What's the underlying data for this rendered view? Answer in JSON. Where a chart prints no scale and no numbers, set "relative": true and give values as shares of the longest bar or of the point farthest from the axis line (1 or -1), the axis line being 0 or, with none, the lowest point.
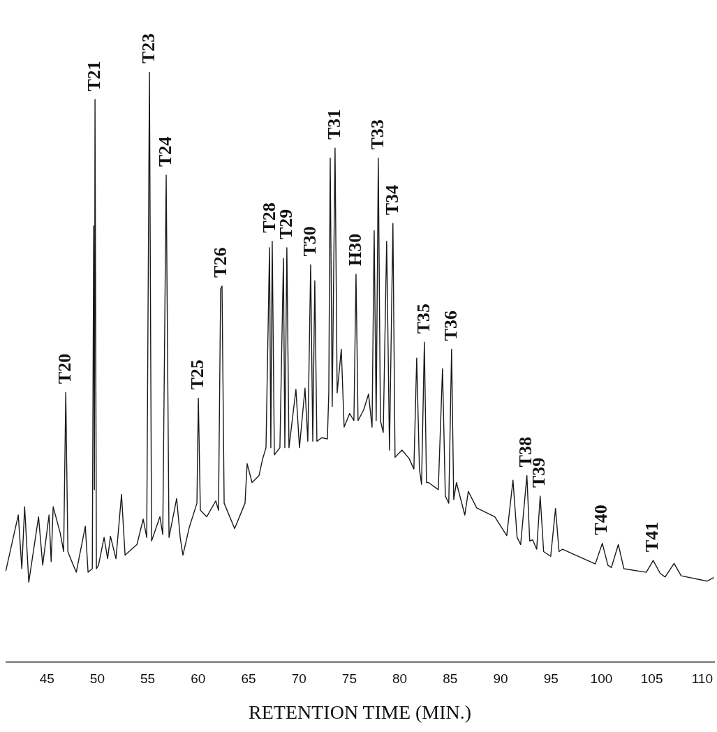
{
  "chart_data": {
    "type": "line",
    "xlabel": "RETENTION TIME (MIN.)",
    "relative": true,
    "marker": "none",
    "color": "#1a1a1a",
    "xlim": [
      40.9,
      111.2
    ],
    "xticks": [
      45,
      50,
      55,
      60,
      65,
      70,
      75,
      80,
      85,
      90,
      95,
      100,
      105,
      110
    ],
    "x": [
      40.92,
      42.16,
      42.51,
      42.79,
      43.2,
      44.17,
      44.58,
      45.21,
      45.42,
      45.62,
      46.31,
      46.66,
      46.87,
      47.08,
      47.35,
      47.91,
      48.81,
      49.08,
      49.5,
      49.64,
      49.71,
      49.77,
      49.91,
      50.12,
      50.67,
      51.02,
      51.3,
      51.85,
      52.4,
      52.75,
      53.93,
      54.55,
      54.9,
      55.17,
      55.38,
      56.21,
      56.49,
      56.83,
      57.11,
      57.87,
      58.22,
      58.49,
      59.12,
      59.88,
      60.02,
      60.22,
      60.85,
      61.75,
      62.02,
      62.23,
      62.37,
      62.58,
      63.62,
      64.65,
      64.86,
      65.35,
      66.04,
      66.38,
      66.73,
      67.08,
      67.21,
      67.35,
      67.56,
      68.11,
      68.46,
      68.6,
      68.8,
      69.01,
      69.7,
      70.05,
      70.6,
      70.88,
      71.16,
      71.37,
      71.57,
      71.78,
      72.27,
      72.82,
      72.96,
      73.1,
      73.3,
      73.58,
      73.79,
      74.2,
      74.48,
      75.03,
      75.45,
      75.66,
      75.86,
      76.42,
      76.9,
      77.25,
      77.46,
      77.66,
      77.87,
      78.08,
      78.36,
      78.7,
      78.98,
      79.32,
      79.53,
      80.22,
      80.92,
      81.4,
      81.68,
      81.95,
      82.16,
      82.44,
      82.65,
      82.85,
      83.82,
      84.24,
      84.52,
      84.86,
      85.14,
      85.35,
      85.62,
      86.45,
      86.8,
      87.63,
      89.43,
      90.61,
      91.23,
      91.64,
      91.99,
      92.61,
      92.89,
      93.17,
      93.58,
      93.93,
      94.27,
      94.97,
      95.45,
      95.8,
      96.14,
      99.39,
      100.09,
      100.64,
      100.99,
      101.68,
      102.23,
      104.45,
      105.14,
      105.83,
      106.32,
      107.21,
      107.91,
      110.47,
      111.16
    ],
    "values": [
      0.154,
      0.249,
      0.158,
      0.263,
      0.135,
      0.246,
      0.164,
      0.249,
      0.17,
      0.263,
      0.219,
      0.187,
      0.457,
      0.187,
      0.175,
      0.152,
      0.23,
      0.152,
      0.158,
      0.739,
      0.292,
      0.953,
      0.158,
      0.164,
      0.211,
      0.175,
      0.213,
      0.175,
      0.284,
      0.181,
      0.199,
      0.242,
      0.211,
      1,
      0.205,
      0.246,
      0.216,
      0.825,
      0.211,
      0.277,
      0.211,
      0.181,
      0.228,
      0.269,
      0.447,
      0.257,
      0.246,
      0.273,
      0.257,
      0.632,
      0.637,
      0.269,
      0.226,
      0.269,
      0.336,
      0.304,
      0.316,
      0.343,
      0.363,
      0.702,
      0.363,
      0.713,
      0.351,
      0.363,
      0.684,
      0.363,
      0.702,
      0.363,
      0.462,
      0.363,
      0.464,
      0.374,
      0.673,
      0.374,
      0.646,
      0.374,
      0.38,
      0.378,
      0.456,
      0.854,
      0.433,
      0.871,
      0.456,
      0.53,
      0.398,
      0.421,
      0.409,
      0.657,
      0.409,
      0.427,
      0.454,
      0.398,
      0.731,
      0.409,
      0.854,
      0.409,
      0.389,
      0.713,
      0.359,
      0.743,
      0.347,
      0.359,
      0.345,
      0.327,
      0.515,
      0.327,
      0.301,
      0.542,
      0.304,
      0.304,
      0.292,
      0.497,
      0.281,
      0.269,
      0.53,
      0.275,
      0.304,
      0.249,
      0.289,
      0.261,
      0.246,
      0.214,
      0.308,
      0.211,
      0.199,
      0.316,
      0.205,
      0.207,
      0.191,
      0.281,
      0.187,
      0.179,
      0.26,
      0.187,
      0.191,
      0.166,
      0.201,
      0.164,
      0.16,
      0.199,
      0.158,
      0.152,
      0.172,
      0.15,
      0.144,
      0.167,
      0.146,
      0.137,
      0.143
    ],
    "annotations": [
      {
        "text": "T20",
        "x": 46.87,
        "y": 0.457
      },
      {
        "text": "T21",
        "x": 49.77,
        "y": 0.953
      },
      {
        "text": "T23",
        "x": 55.17,
        "y": 1
      },
      {
        "text": "T24",
        "x": 56.83,
        "y": 0.825
      },
      {
        "text": "T25",
        "x": 60.02,
        "y": 0.447
      },
      {
        "text": "T26",
        "x": 62.3,
        "y": 0.637
      },
      {
        "text": "T28",
        "x": 67.2,
        "y": 0.713
      },
      {
        "text": "T29",
        "x": 68.8,
        "y": 0.702
      },
      {
        "text": "T30",
        "x": 71.16,
        "y": 0.673
      },
      {
        "text": "T31",
        "x": 73.58,
        "y": 0.871
      },
      {
        "text": "H30",
        "x": 75.66,
        "y": 0.657
      },
      {
        "text": "T33",
        "x": 77.87,
        "y": 0.854
      },
      {
        "text": "T34",
        "x": 79.32,
        "y": 0.743
      },
      {
        "text": "T35",
        "x": 82.44,
        "y": 0.542
      },
      {
        "text": "T36",
        "x": 85.14,
        "y": 0.53
      },
      {
        "text": "T38",
        "x": 92.61,
        "y": 0.316
      },
      {
        "text": "T39",
        "x": 93.93,
        "y": 0.281
      },
      {
        "text": "T40",
        "x": 100.09,
        "y": 0.201
      },
      {
        "text": "T41",
        "x": 105.14,
        "y": 0.172
      }
    ]
  }
}
